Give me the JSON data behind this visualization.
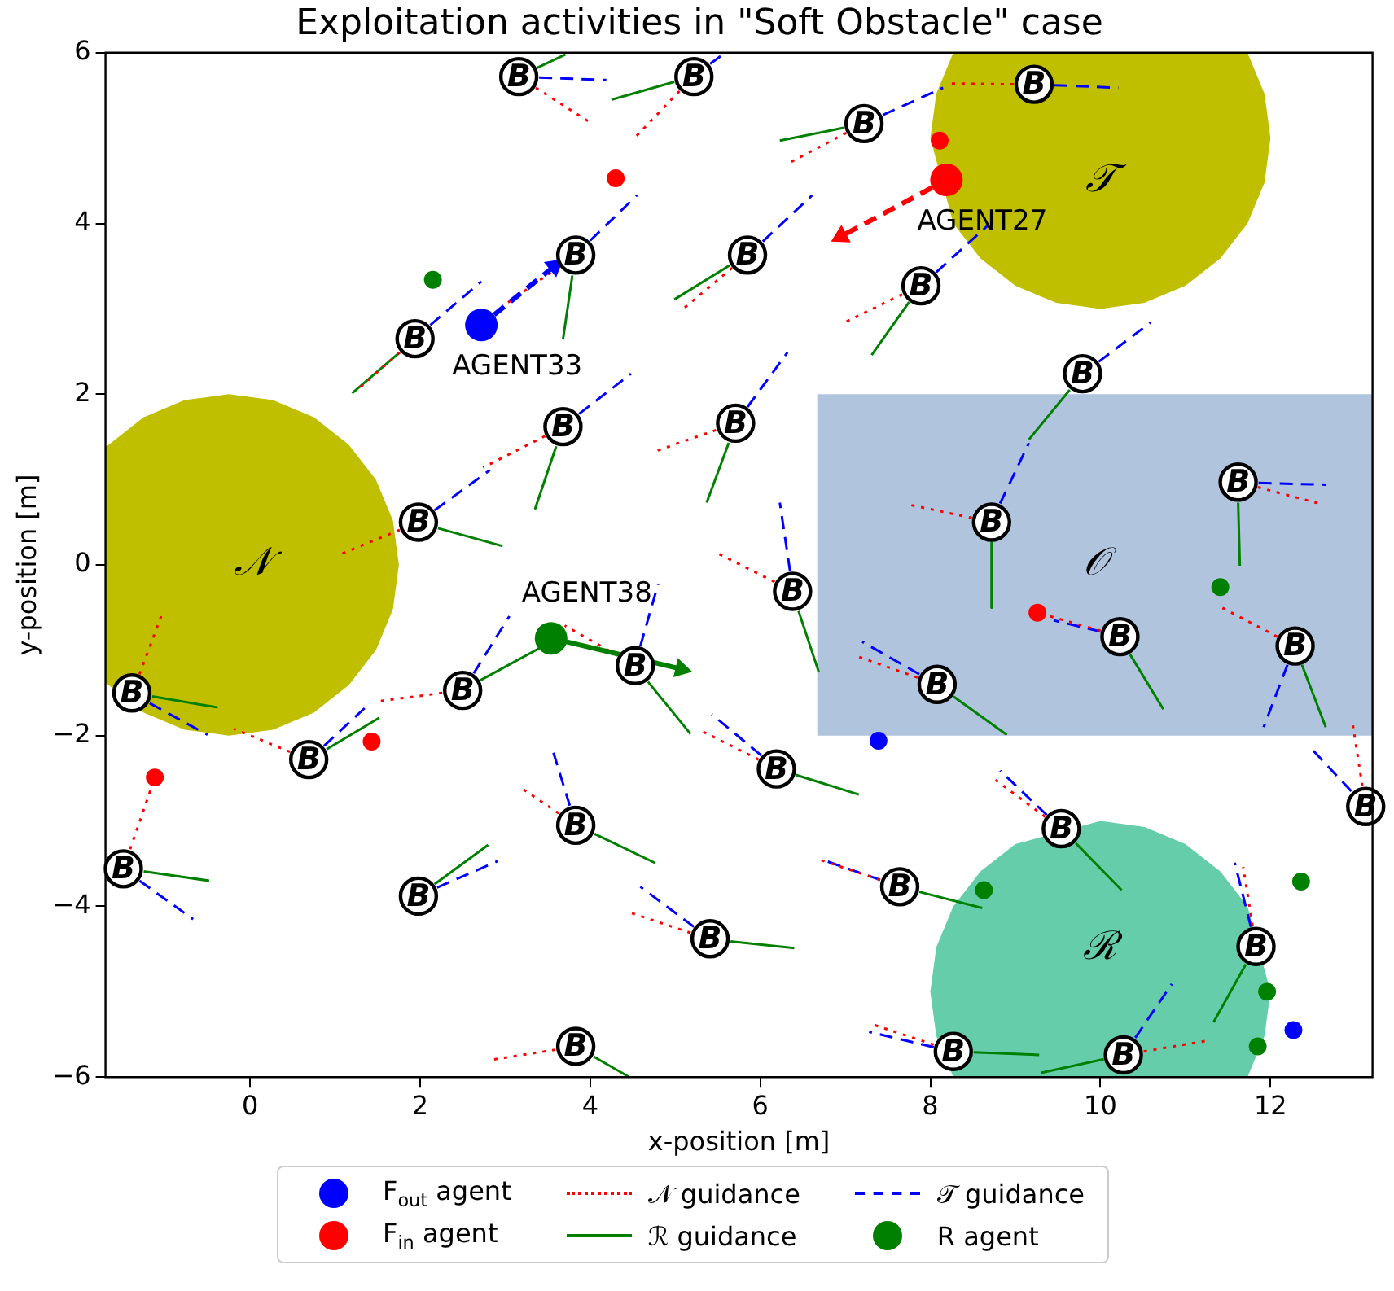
{
  "chart_data": {
    "type": "scatter",
    "title": "Exploitation activities in \"Soft Obstacle\" case",
    "xlabel": "x-position [m]",
    "ylabel": "y-position [m]",
    "xlim": [
      -1.7,
      13.2
    ],
    "xticks": [
      0,
      2,
      4,
      6,
      8,
      10,
      12
    ],
    "ylim": [
      -6,
      6
    ],
    "yticks": [
      -6,
      -4,
      -2,
      0,
      2,
      4,
      6
    ],
    "grid": false,
    "legend": "bottom",
    "annotations": [
      {
        "text": "AGENT33",
        "x": 2.72,
        "y": 2.81
      },
      {
        "text": "AGENT27",
        "x": 8.19,
        "y": 4.51
      },
      {
        "text": "AGENT38",
        "x": 3.54,
        "y": -0.86
      }
    ],
    "series": [
      {
        "type": "area",
        "name": "𝒩",
        "color": "#bfbf00",
        "x": [
          1.75,
          1.68,
          1.48,
          1.16,
          0.75,
          0.27,
          -0.25,
          -0.77,
          -1.25,
          -1.66,
          -1.7,
          -1.7,
          -1.66,
          -1.25,
          -0.77,
          -0.25,
          0.27,
          0.75,
          1.16,
          1.48,
          1.68
        ],
        "values": [
          0,
          0.52,
          1,
          1.41,
          1.73,
          1.93,
          2,
          1.93,
          1.73,
          1.41,
          1.38,
          -1.38,
          -1.41,
          -1.73,
          -1.93,
          -2,
          -1.93,
          -1.73,
          -1.41,
          -1,
          -0.52
        ]
      },
      {
        "type": "area",
        "name": "𝒯",
        "color": "#bfbf00",
        "x": [
          12,
          11.93,
          11.73,
          8.27,
          8.07,
          8,
          8.27,
          8.59,
          9,
          9.48,
          10,
          10.52,
          11,
          11.41,
          11.73,
          11.93
        ],
        "values": [
          5,
          5.52,
          6,
          6,
          5.52,
          5,
          4,
          3.59,
          3.27,
          3.07,
          3,
          3.07,
          3.27,
          3.59,
          4,
          4.48
        ]
      },
      {
        "type": "area",
        "name": "ℛ",
        "color": "#66cdaa",
        "x": [
          12,
          11.73,
          11.41,
          11,
          10.52,
          10,
          9,
          8.59,
          8.27,
          8.07,
          8,
          8.07,
          8.27,
          11.73,
          11.93
        ],
        "values": [
          -5,
          -4,
          -3.59,
          -3.27,
          -3.07,
          -3,
          -3.27,
          -3.59,
          -4,
          -4.48,
          -5,
          -5.52,
          -6,
          -6,
          -5.52
        ]
      },
      {
        "type": "area",
        "name": "𝒪",
        "color": "#b0c4de",
        "x": [
          6.67,
          13.2,
          13.2,
          6.67
        ],
        "values": [
          2,
          2,
          -2,
          -2
        ]
      },
      {
        "type": "bubble",
        "name": "F$_{out}$ agent",
        "color": "#0000ff",
        "x": [
          2.72,
          7.39,
          12.27
        ],
        "values": [
          2.81,
          -2.06,
          -5.45
        ],
        "sizes": [
          1,
          0.3,
          0.3
        ]
      },
      {
        "type": "bubble",
        "name": "F$_{in}$ agent",
        "color": "#ff0000",
        "x": [
          8.19,
          4.3,
          8.11,
          1.43,
          -1.12,
          9.26
        ],
        "values": [
          4.51,
          4.53,
          4.97,
          -2.07,
          -2.49,
          -0.56
        ],
        "sizes": [
          1,
          0.3,
          0.3,
          0.3,
          0.3,
          0.3
        ]
      },
      {
        "type": "line",
        "name": "𝒩 guidance",
        "color": "#ff0000",
        "line_style": "dotted",
        "x": [
          3.36,
          4.02,
          null,
          5.05,
          4.53,
          null,
          7.01,
          6.34,
          null,
          8.98,
          8.19,
          null,
          3.63,
          2.97,
          null,
          5.67,
          5.07,
          null,
          7.67,
          6.99,
          null,
          1.76,
          1.26,
          null,
          3.47,
          2.74,
          null,
          5.48,
          4.76,
          null,
          1.76,
          1.05,
          null,
          8.49,
          7.73,
          null,
          11.85,
          12.61,
          null,
          6.17,
          5.49,
          null,
          10.0,
          9.26,
          null,
          12.08,
          11.39,
          null,
          4.32,
          3.7,
          null,
          -1.3,
          -1.03,
          null,
          2.26,
          1.49,
          null,
          7.85,
          7.14,
          null,
          0.47,
          -0.19,
          null,
          5.98,
          5.3,
          null,
          13.08,
          12.97,
          null,
          -1.41,
          -1.12,
          null,
          3.63,
          3.2,
          null,
          9.35,
          8.74,
          null,
          7.41,
          6.69,
          null,
          5.18,
          4.46,
          null,
          11.79,
          11.68,
          null,
          3.59,
          2.82,
          null,
          8.04,
          7.31,
          null,
          10.51,
          11.28
        ],
        "values": [
          5.59,
          5.17,
          null,
          5.55,
          5.01,
          null,
          5.06,
          4.71,
          null,
          5.63,
          5.64,
          null,
          3.49,
          3.03,
          null,
          3.48,
          2.98,
          null,
          3.17,
          2.84,
          null,
          2.49,
          2.05,
          null,
          1.51,
          1.14,
          null,
          1.58,
          1.33,
          null,
          0.41,
          0.12,
          null,
          0.55,
          0.71,
          null,
          0.91,
          0.71,
          null,
          -0.2,
          0.14,
          null,
          -0.77,
          -0.56,
          null,
          -0.84,
          -0.48,
          null,
          -1.06,
          -0.71,
          null,
          -1.28,
          -0.56,
          null,
          -1.5,
          -1.6,
          null,
          -1.32,
          -1.07,
          null,
          -2.19,
          -1.92,
          null,
          -2.28,
          -1.94,
          null,
          -2.59,
          -1.88,
          null,
          -3.33,
          -2.49,
          null,
          -2.91,
          -2.62,
          null,
          -2.95,
          -2.5,
          null,
          -3.69,
          -3.45,
          null,
          -4.31,
          -4.07,
          null,
          -4.23,
          -3.54,
          null,
          -5.68,
          -5.8,
          null,
          -5.62,
          -5.38,
          null,
          -5.7,
          -5.57
        ]
      },
      {
        "type": "line",
        "name": "ℛ guidance",
        "color": "#008000",
        "line_style": "solid",
        "x": [
          3.37,
          3.71,
          null,
          4.99,
          4.25,
          null,
          6.98,
          6.23,
          null,
          3.79,
          3.68,
          null,
          5.64,
          4.99,
          null,
          7.75,
          7.31,
          null,
          1.76,
          1.2,
          null,
          9.64,
          9.16,
          null,
          3.6,
          3.35,
          null,
          5.63,
          5.37,
          null,
          2.21,
          2.97,
          null,
          8.72,
          8.72,
          null,
          11.62,
          11.64,
          null,
          6.45,
          6.69,
          null,
          10.35,
          10.74,
          null,
          12.37,
          12.65,
          null,
          4.68,
          5.18,
          null,
          -1.15,
          -0.38,
          null,
          2.71,
          3.58,
          null,
          8.27,
          8.9,
          null,
          0.9,
          1.52,
          null,
          6.42,
          7.16,
          null,
          -1.25,
          -0.48,
          null,
          4.05,
          4.76,
          null,
          9.71,
          10.25,
          null,
          2.17,
          2.8,
          null,
          7.87,
          8.61,
          null,
          5.65,
          6.4,
          null,
          11.71,
          11.33,
          null,
          4.04,
          4.46,
          null,
          8.51,
          9.28,
          null,
          10.04,
          9.3
        ],
        "values": [
          5.82,
          5.98,
          null,
          5.66,
          5.45,
          null,
          5.12,
          4.97,
          null,
          3.39,
          2.64,
          null,
          3.51,
          3.11,
          null,
          3.08,
          2.46,
          null,
          2.49,
          2.01,
          null,
          2.05,
          1.47,
          null,
          1.39,
          0.65,
          null,
          1.43,
          0.73,
          null,
          0.43,
          0.22,
          null,
          0.26,
          -0.5,
          null,
          0.73,
          -0.01,
          null,
          -0.54,
          -1.26,
          null,
          -1.05,
          -1.69,
          null,
          -1.17,
          -1.9,
          null,
          -1.37,
          -1.98,
          null,
          -1.54,
          -1.67,
          null,
          -1.35,
          -0.88,
          null,
          -1.54,
          -1.99,
          null,
          -2.16,
          -1.79,
          null,
          -2.46,
          -2.69,
          null,
          -3.59,
          -3.7,
          null,
          -3.15,
          -3.49,
          null,
          -3.26,
          -3.81,
          null,
          -3.74,
          -3.28,
          null,
          -3.83,
          -4.02,
          null,
          -4.41,
          -4.49,
          null,
          -4.68,
          -5.36,
          null,
          -5.76,
          -6.0,
          null,
          -5.71,
          -5.74,
          null,
          -5.79,
          -5.95
        ]
      },
      {
        "type": "line",
        "name": "𝒯 guidance",
        "color": "#0000ff",
        "line_style": "dashed",
        "x": [
          3.4,
          4.19,
          null,
          5.41,
          5.56,
          null,
          7.44,
          8.15,
          null,
          9.46,
          10.21,
          null,
          4.0,
          4.55,
          null,
          6.03,
          6.61,
          null,
          8.07,
          8.67,
          null,
          2.12,
          2.72,
          null,
          9.98,
          10.59,
          null,
          3.87,
          4.48,
          null,
          5.85,
          6.32,
          null,
          2.17,
          2.82,
          null,
          8.82,
          9.16,
          null,
          11.86,
          12.65,
          null,
          6.35,
          6.23,
          null,
          10.0,
          9.45,
          null,
          12.2,
          11.92,
          null,
          4.59,
          4.8,
          null,
          -1.18,
          -0.5,
          null,
          2.63,
          3.05,
          null,
          7.87,
          7.2,
          null,
          0.87,
          1.41,
          null,
          6.01,
          5.43,
          null,
          12.95,
          12.46,
          null,
          -1.3,
          -0.67,
          null,
          3.76,
          3.54,
          null,
          9.37,
          8.82,
          null,
          2.2,
          2.91,
          null,
          7.41,
          6.72,
          null,
          5.22,
          4.59,
          null,
          11.77,
          11.58,
          null,
          8.04,
          7.28,
          null,
          10.41,
          10.84
        ],
        "values": [
          5.71,
          5.68,
          null,
          5.87,
          5.98,
          null,
          5.27,
          5.59,
          null,
          5.62,
          5.59,
          null,
          3.8,
          4.33,
          null,
          3.79,
          4.33,
          null,
          3.43,
          3.97,
          null,
          2.81,
          3.32,
          null,
          2.38,
          2.84,
          null,
          1.77,
          2.24,
          null,
          1.85,
          2.49,
          null,
          0.64,
          1.11,
          null,
          0.72,
          1.43,
          null,
          0.96,
          0.94,
          null,
          -0.07,
          0.73,
          null,
          -0.78,
          -0.65,
          null,
          -1.17,
          -1.9,
          null,
          -0.95,
          -0.22,
          null,
          -1.62,
          -1.99,
          null,
          -1.27,
          -0.6,
          null,
          -1.28,
          -0.9,
          null,
          -2.12,
          -1.62,
          null,
          -2.23,
          -1.75,
          null,
          -2.65,
          -2.13,
          null,
          -3.7,
          -4.15,
          null,
          -2.82,
          -2.11,
          null,
          -2.93,
          -2.41,
          null,
          -3.78,
          -3.47,
          null,
          -3.69,
          -3.45,
          null,
          -4.24,
          -3.77,
          null,
          -4.24,
          -3.49,
          null,
          -5.65,
          -5.47,
          null,
          -5.54,
          -4.91
        ]
      },
      {
        "type": "bubble",
        "name": "R agent",
        "color": "#008000",
        "x": [
          3.54,
          2.15,
          11.41,
          8.63,
          12.36,
          11.96,
          11.85
        ],
        "values": [
          -0.86,
          3.34,
          -0.26,
          -3.81,
          -3.71,
          -5.0,
          -5.64
        ],
        "sizes": [
          1,
          0.3,
          0.3,
          0.3,
          0.3,
          0.3,
          0.3
        ]
      },
      {
        "type": "line",
        "color": "#0000ff",
        "line_style": "dashed",
        "marker": "triangle",
        "x": [
          2.87,
          3.58
        ],
        "values": [
          2.93,
          3.5
        ]
      },
      {
        "type": "line",
        "color": "#ff0000",
        "line_style": "dashed",
        "marker": "triangle",
        "x": [
          8.02,
          6.95
        ],
        "values": [
          4.42,
          3.85
        ]
      },
      {
        "type": "line",
        "color": "#008000",
        "line_style": "solid",
        "marker": "triangle",
        "x": [
          3.72,
          5.07
        ],
        "values": [
          -0.9,
          -1.22
        ]
      },
      {
        "type": "scatter",
        "color": "#000000",
        "marker": "circle",
        "x": [
          3.16,
          5.22,
          7.22,
          9.22,
          3.83,
          5.85,
          7.89,
          1.94,
          9.79,
          3.68,
          5.71,
          1.98,
          8.72,
          11.62,
          6.38,
          10.23,
          12.29,
          4.53,
          -1.39,
          2.5,
          8.08,
          0.69,
          6.19,
          13.12,
          -1.49,
          3.83,
          9.54,
          1.98,
          7.64,
          5.41,
          11.83,
          3.83,
          8.27,
          10.27
        ],
        "values": [
          5.72,
          5.72,
          5.17,
          5.63,
          3.63,
          3.63,
          3.27,
          2.65,
          2.24,
          1.62,
          1.66,
          0.5,
          0.5,
          0.97,
          -0.31,
          -0.84,
          -0.95,
          -1.18,
          -1.5,
          -1.47,
          -1.4,
          -2.28,
          -2.39,
          -2.83,
          -3.56,
          -3.05,
          -3.09,
          -3.88,
          -3.77,
          -4.38,
          -4.47,
          -5.64,
          -5.7,
          -5.74
        ],
        "value_labels": [
          "B",
          "B",
          "B",
          "B",
          "B",
          "B",
          "B",
          "B",
          "B",
          "B",
          "B",
          "B",
          "B",
          "B",
          "B",
          "B",
          "B",
          "B",
          "B",
          "B",
          "B",
          "B",
          "B",
          "B",
          "B",
          "B",
          "B",
          "B",
          "B",
          "B",
          "B",
          "B",
          "B",
          "B"
        ]
      }
    ]
  }
}
